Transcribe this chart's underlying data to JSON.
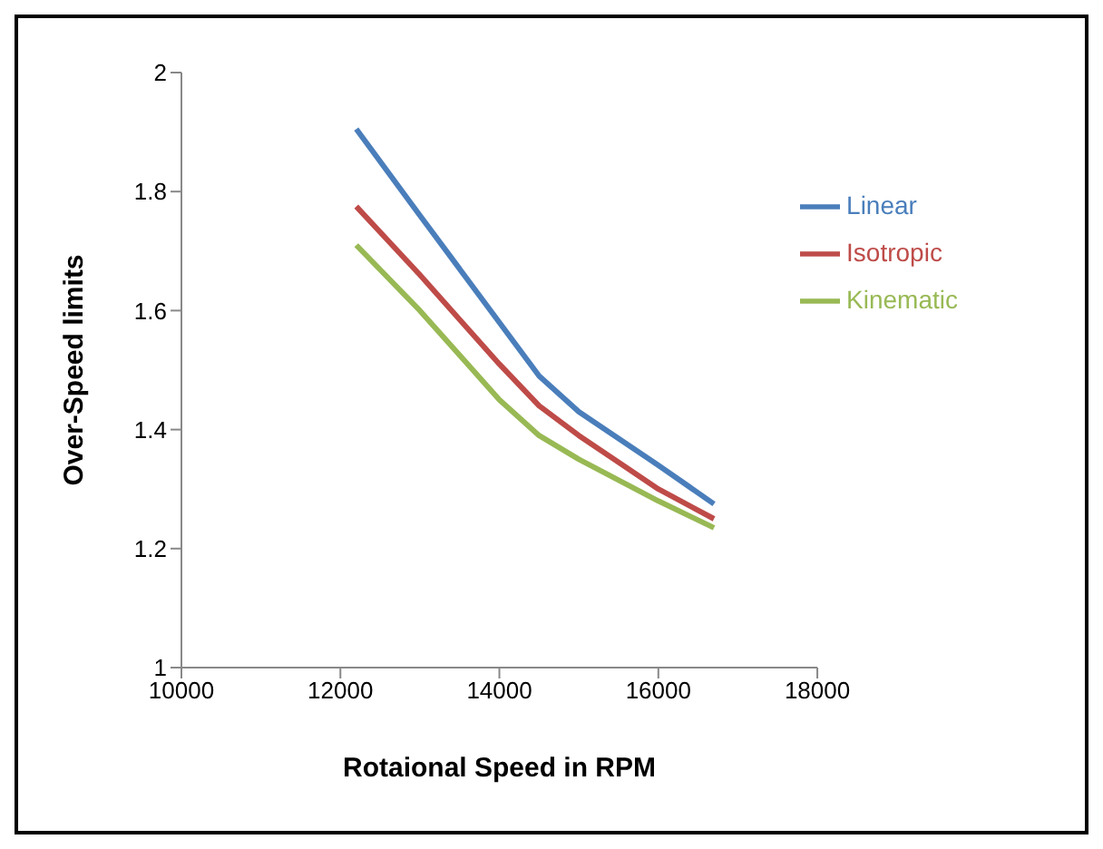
{
  "chart_data": {
    "type": "line",
    "xlabel": "Rotaional Speed in RPM",
    "ylabel": "Over-Speed limits",
    "x": [
      12200,
      13000,
      14000,
      14500,
      15000,
      16000,
      16700
    ],
    "series": [
      {
        "name": "Linear",
        "color": "#4a7ebb",
        "values": [
          1.905,
          1.76,
          1.58,
          1.49,
          1.43,
          1.34,
          1.275
        ]
      },
      {
        "name": "Isotropic",
        "color": "#be4b48",
        "values": [
          1.775,
          1.66,
          1.51,
          1.44,
          1.39,
          1.3,
          1.25
        ]
      },
      {
        "name": "Kinematic",
        "color": "#98b954",
        "values": [
          1.71,
          1.6,
          1.45,
          1.39,
          1.35,
          1.28,
          1.235
        ]
      }
    ],
    "xlim": [
      10000,
      18000
    ],
    "xticks": [
      10000,
      12000,
      14000,
      16000,
      18000
    ],
    "ylim": [
      1,
      2
    ],
    "yticks": [
      1,
      1.2,
      1.4,
      1.6,
      1.8,
      2
    ],
    "grid": false,
    "legend": "top right",
    "marker": "none",
    "line_style": "solid"
  }
}
